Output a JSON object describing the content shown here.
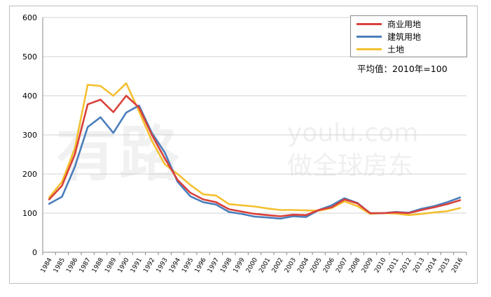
{
  "chart_data": {
    "type": "line",
    "title": "",
    "xlabel": "",
    "ylabel": "",
    "ylim": [
      0,
      600
    ],
    "yticks": [
      "0",
      "100",
      "200",
      "300",
      "400",
      "500",
      "600"
    ],
    "grid": "horizontal",
    "legend_placement": "top-right",
    "note": "平均值：2010年=100",
    "x": [
      "1984",
      "1985",
      "1986",
      "1987",
      "1988",
      "1989",
      "1990",
      "1991",
      "1992",
      "1993",
      "1994",
      "1995",
      "1996",
      "1997",
      "1998",
      "1999",
      "2000",
      "2001",
      "2002",
      "2003",
      "2004",
      "2005",
      "2006",
      "2007",
      "2008",
      "2009",
      "2010",
      "2011",
      "2012",
      "2013",
      "2014",
      "2015",
      "2016"
    ],
    "series": [
      {
        "name": "商业用地",
        "color": "#d9403a",
        "values": [
          135,
          170,
          250,
          378,
          390,
          358,
          400,
          370,
          300,
          240,
          185,
          152,
          135,
          128,
          110,
          104,
          98,
          95,
          92,
          96,
          95,
          108,
          115,
          135,
          125,
          100,
          100,
          102,
          100,
          108,
          115,
          123,
          133
        ]
      },
      {
        "name": "建筑用地",
        "color": "#4a7ebb",
        "values": [
          124,
          142,
          218,
          320,
          345,
          305,
          357,
          375,
          305,
          255,
          180,
          143,
          128,
          122,
          103,
          98,
          91,
          89,
          86,
          92,
          90,
          108,
          120,
          138,
          126,
          100,
          100,
          103,
          101,
          111,
          118,
          128,
          140
        ]
      },
      {
        "name": "土地",
        "color": "#f4c030",
        "values": [
          140,
          180,
          265,
          428,
          425,
          400,
          432,
          360,
          285,
          225,
          200,
          172,
          148,
          145,
          123,
          120,
          117,
          112,
          108,
          108,
          107,
          106,
          113,
          130,
          118,
          98,
          100,
          99,
          95,
          98,
          102,
          105,
          113
        ]
      }
    ]
  },
  "watermark": {
    "main": "有路",
    "latin": "youlu.com",
    "sub": "做全球房东"
  }
}
